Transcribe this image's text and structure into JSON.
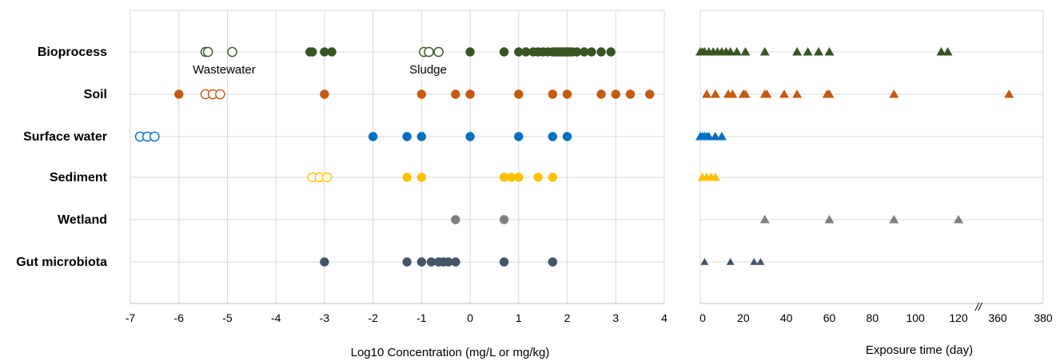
{
  "chart_data": [
    {
      "type": "scatter",
      "xlabel": "Log10 Concentration (mg/L or mg/kg)",
      "xlim": [
        -7,
        4
      ],
      "xticks": [
        "-7",
        "-6",
        "-5",
        "-4",
        "-3",
        "-2",
        "-1",
        "0",
        "1",
        "2",
        "3",
        "4"
      ],
      "grid": true,
      "categories": [
        "Bioprocess",
        "Soil",
        "Surface water",
        "Sediment",
        "Wetland",
        "Gut microbiota"
      ],
      "colors": {
        "Bioprocess": "#375623",
        "Soil": "#C55A11",
        "Surface water": "#0070C0",
        "Sediment": "#FFC000",
        "Wetland": "#808080",
        "Gut microbiota": "#44546A"
      },
      "annotations": [
        {
          "text": "Wastewater",
          "category": "Bioprocess",
          "x": -5.0
        },
        {
          "text": "Sludge",
          "category": "Bioprocess",
          "x": -0.8
        }
      ],
      "series": [
        {
          "category": "Bioprocess",
          "marker": "open-circle",
          "x": [
            -5.45,
            -5.4,
            -4.9,
            -0.95,
            -0.85,
            -0.65
          ]
        },
        {
          "category": "Bioprocess",
          "marker": "filled-circle",
          "x": [
            -3.3,
            -3.25,
            -3.0,
            -2.85,
            0,
            0.7,
            1.0,
            1.15,
            1.3,
            1.4,
            1.5,
            1.6,
            1.7,
            1.75,
            1.8,
            1.85,
            1.9,
            1.95,
            2.0,
            2.05,
            2.1,
            2.2,
            2.35,
            2.5,
            2.7,
            2.9
          ]
        },
        {
          "category": "Soil",
          "marker": "open-circle",
          "x": [
            -5.45,
            -5.3,
            -5.15
          ]
        },
        {
          "category": "Soil",
          "marker": "filled-circle",
          "x": [
            -6.0,
            -3.0,
            -1.0,
            -0.3,
            0,
            1.0,
            1.7,
            2.0,
            2.7,
            3.0,
            3.3,
            3.7
          ]
        },
        {
          "category": "Surface water",
          "marker": "open-circle",
          "x": [
            -6.8,
            -6.65,
            -6.5
          ]
        },
        {
          "category": "Surface water",
          "marker": "filled-circle",
          "x": [
            -2.0,
            -1.3,
            -1.0,
            0,
            1.0,
            1.7,
            2.0
          ]
        },
        {
          "category": "Sediment",
          "marker": "open-circle",
          "x": [
            -3.25,
            -3.1,
            -2.95
          ]
        },
        {
          "category": "Sediment",
          "marker": "filled-circle",
          "x": [
            -1.3,
            -1.0,
            0.7,
            0.85,
            1.0,
            1.4,
            1.7
          ]
        },
        {
          "category": "Wetland",
          "marker": "filled-circle",
          "x": [
            -0.3,
            0.7
          ]
        },
        {
          "category": "Gut microbiota",
          "marker": "filled-circle",
          "x": [
            -3.0,
            -1.3,
            -1.0,
            -0.8,
            -0.65,
            -0.55,
            -0.45,
            -0.3,
            0.7,
            1.7
          ]
        }
      ]
    },
    {
      "type": "scatter",
      "xlabel": "Exposure time (day)",
      "xticks": [
        "0",
        "20",
        "40",
        "60",
        "80",
        "100",
        "120",
        "360",
        "380"
      ],
      "axis_break": "120-360",
      "break_mark": "//",
      "grid": true,
      "marker": "triangle",
      "series": [
        {
          "category": "Bioprocess",
          "x": [
            0,
            1,
            2,
            4,
            6,
            8,
            10,
            12,
            14,
            17,
            21,
            30,
            45,
            50,
            55,
            60,
            112,
            115
          ]
        },
        {
          "category": "Soil",
          "x": [
            3,
            7,
            13,
            15,
            20,
            21,
            30,
            31,
            39,
            45,
            59,
            60,
            90,
            365
          ]
        },
        {
          "category": "Surface water",
          "x": [
            0,
            1,
            2,
            3,
            4,
            7,
            10
          ]
        },
        {
          "category": "Sediment",
          "x": [
            1,
            3,
            5,
            7
          ]
        },
        {
          "category": "Wetland",
          "x": [
            30,
            60,
            90,
            120
          ]
        },
        {
          "category": "Gut microbiota",
          "x": [
            2,
            14,
            25,
            28
          ]
        }
      ]
    }
  ]
}
